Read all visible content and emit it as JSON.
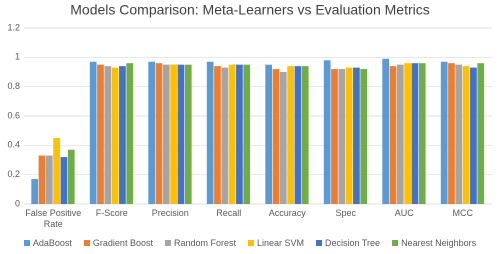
{
  "chart_data": {
    "type": "bar",
    "title": "Models Comparison: Meta-Learners vs Evaluation Metrics",
    "categories": [
      "False Positive Rate",
      "F-Score",
      "Precision",
      "Recall",
      "Accuracy",
      "Spec",
      "AUC",
      "MCC"
    ],
    "series": [
      {
        "name": "AdaBoost",
        "color": "#5b9bd5",
        "values": [
          0.17,
          0.97,
          0.97,
          0.97,
          0.95,
          0.98,
          0.99,
          0.97
        ]
      },
      {
        "name": "Gradient Boost",
        "color": "#ed7d31",
        "values": [
          0.33,
          0.95,
          0.96,
          0.94,
          0.92,
          0.92,
          0.94,
          0.96
        ]
      },
      {
        "name": "Random Forest",
        "color": "#a5a5a5",
        "values": [
          0.33,
          0.94,
          0.95,
          0.93,
          0.9,
          0.92,
          0.95,
          0.95
        ]
      },
      {
        "name": "Linear SVM",
        "color": "#ffc000",
        "values": [
          0.45,
          0.93,
          0.95,
          0.95,
          0.94,
          0.93,
          0.96,
          0.94
        ]
      },
      {
        "name": "Decision Tree",
        "color": "#4472c4",
        "values": [
          0.32,
          0.94,
          0.95,
          0.95,
          0.94,
          0.93,
          0.96,
          0.93
        ]
      },
      {
        "name": "Nearest Neighbors",
        "color": "#70ad47",
        "values": [
          0.37,
          0.96,
          0.95,
          0.95,
          0.94,
          0.92,
          0.96,
          0.96
        ]
      }
    ],
    "ylim": [
      0,
      1.2
    ],
    "yticks": [
      0,
      0.2,
      0.4,
      0.6,
      0.8,
      1,
      1.2
    ],
    "grid": true
  }
}
